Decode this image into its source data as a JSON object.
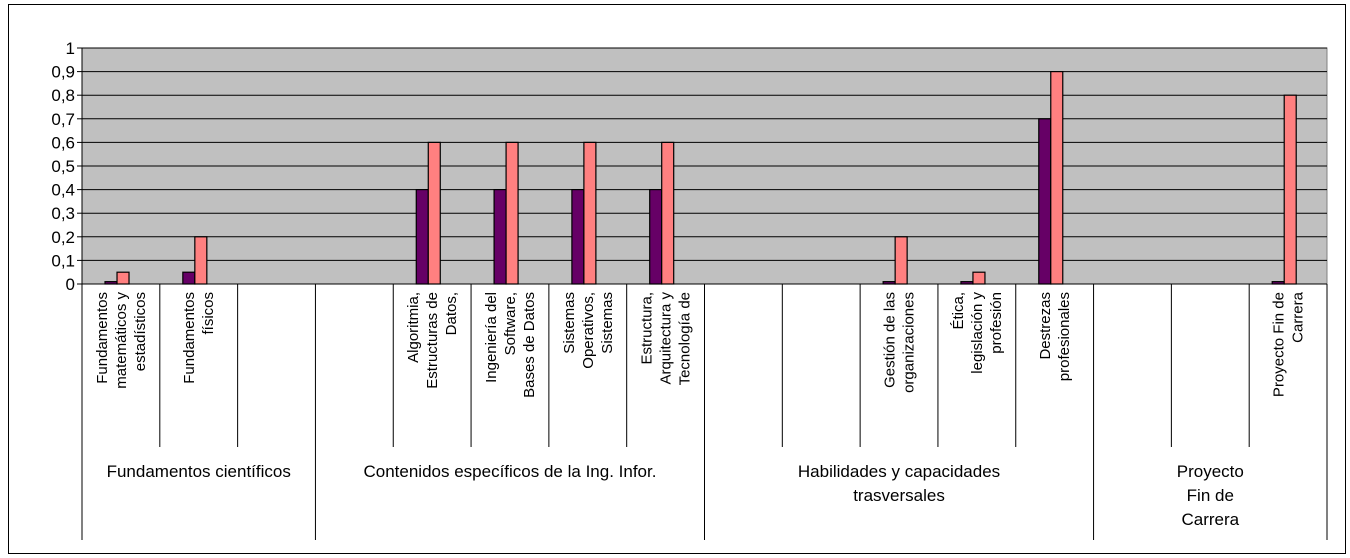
{
  "chart_data": {
    "type": "bar",
    "title": "",
    "xlabel": "",
    "ylabel": "",
    "ylim": [
      0,
      1
    ],
    "y_ticks": [
      "0",
      "0,1",
      "0,2",
      "0,3",
      "0,4",
      "0,5",
      "0,6",
      "0,7",
      "0,8",
      "0,9",
      "1"
    ],
    "grid": true,
    "legend": "none",
    "categories": [
      [
        "Fundamentos",
        "matemáticos y",
        "estadísticos"
      ],
      [
        "Fundamentos",
        "físicos"
      ],
      [],
      [],
      [
        "Algoritmia,",
        "Estructuras de",
        "Datos,"
      ],
      [
        "Ingeniería del",
        "Software,",
        "Bases de Datos"
      ],
      [
        "Sistemas",
        "Operativos,",
        "Sistemas"
      ],
      [
        "Estructura,",
        "Arquitectura y",
        "Tecnología de"
      ],
      [],
      [],
      [
        "Gestión de las",
        "organizaciones"
      ],
      [
        "Ética,",
        "legislación y",
        "profesión"
      ],
      [
        "Destrezas",
        "profesionales"
      ],
      [],
      [],
      [
        "Proyecto Fin de",
        "Carrera"
      ]
    ],
    "groups": [
      {
        "label": [
          "Fundamentos científicos"
        ],
        "start": 0,
        "end": 3
      },
      {
        "label": [
          "Contenidos específicos de la Ing. Infor."
        ],
        "start": 3,
        "end": 8
      },
      {
        "label": [
          "Habilidades y capacidades",
          "trasversales"
        ],
        "start": 8,
        "end": 13
      },
      {
        "label": [
          "Proyecto",
          "Fin de",
          "Carrera"
        ],
        "start": 13,
        "end": 16
      }
    ],
    "series": [
      {
        "values": [
          0.01,
          0.05,
          null,
          null,
          0.4,
          0.4,
          0.4,
          0.4,
          null,
          null,
          0.01,
          0.01,
          0.7,
          null,
          null,
          0.01
        ],
        "color": "#660066"
      },
      {
        "values": [
          0.05,
          0.2,
          null,
          null,
          0.6,
          0.6,
          0.6,
          0.6,
          null,
          null,
          0.2,
          0.05,
          0.9,
          null,
          null,
          0.8
        ],
        "color": "#ff8080"
      }
    ],
    "plot_background": "#c0c0c0"
  }
}
